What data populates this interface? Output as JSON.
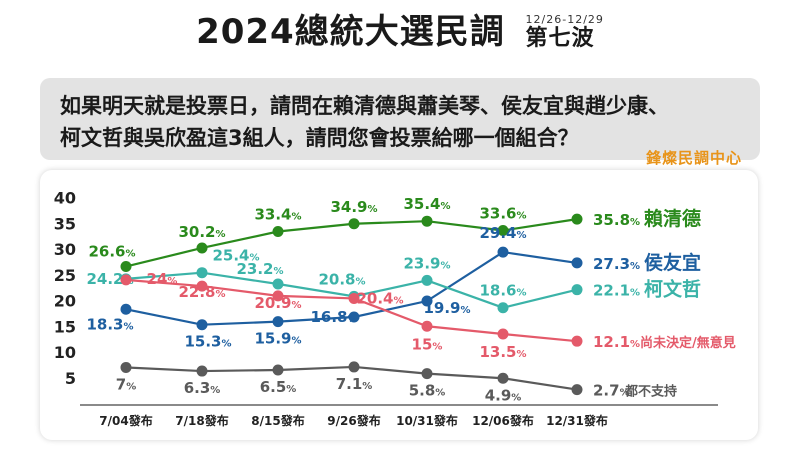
{
  "header": {
    "title": "2024總統大選民調",
    "date_range": "12/26-12/29",
    "wave": "第七波"
  },
  "question": {
    "line1": "如果明天就是投票日，請問在賴清德與蕭美琴、侯友宜與趙少康、",
    "line2": "柯文哲與吳欣盈這3組人，請問您會投票給哪一個組合？"
  },
  "brand": "鋒燦民調中心",
  "chart_data": {
    "type": "line",
    "categories": [
      "7/04發布",
      "7/18發布",
      "8/15發布",
      "9/26發布",
      "10/31發布",
      "12/06發布",
      "12/31發布"
    ],
    "yticks": [
      "5",
      "10",
      "15",
      "20",
      "25",
      "30",
      "35",
      "40"
    ],
    "ylim": [
      0,
      40
    ],
    "grid": false,
    "series": [
      {
        "name": "賴清德",
        "color": "#2a8a1c",
        "values": [
          26.6,
          30.2,
          33.4,
          34.9,
          35.4,
          33.6,
          35.8
        ]
      },
      {
        "name": "侯友宜",
        "color": "#1e5fa0",
        "values": [
          18.3,
          15.3,
          15.9,
          16.8,
          19.9,
          29.4,
          27.3
        ]
      },
      {
        "name": "柯文哲",
        "color": "#3bb3a8",
        "values": [
          24.2,
          25.4,
          23.2,
          20.8,
          23.9,
          18.6,
          22.1
        ]
      },
      {
        "name": "尚未決定/無意見",
        "color": "#e45a6a",
        "values": [
          24,
          22.8,
          20.9,
          20.4,
          15.0,
          13.5,
          12.1
        ]
      },
      {
        "name": "都不支持",
        "color": "#5a5a5a",
        "values": [
          7,
          6.3,
          6.5,
          7.1,
          5.8,
          4.9,
          2.7
        ]
      }
    ]
  }
}
